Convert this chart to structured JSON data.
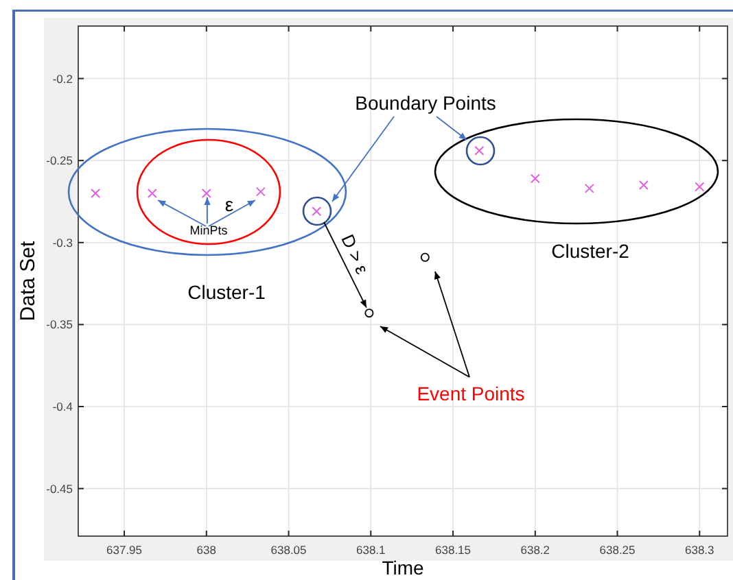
{
  "chart_data": {
    "type": "scatter",
    "xlabel": "Time",
    "ylabel": "Data Set",
    "xlim": [
      637.922,
      638.317
    ],
    "ylim": [
      -0.479,
      -0.168
    ],
    "xticks": [
      637.95,
      638,
      638.05,
      638.1,
      638.15,
      638.2,
      638.25,
      638.3
    ],
    "yticks": [
      -0.2,
      -0.25,
      -0.3,
      -0.35,
      -0.4,
      -0.45
    ],
    "grid": true,
    "series": [
      {
        "color": "#e060e0",
        "marker": "cross",
        "x": [
          637.9325,
          637.967,
          638.0,
          638.033,
          638.067,
          638.166,
          638.2,
          638.233,
          638.266,
          638.3
        ],
        "values": [
          -0.27,
          -0.27,
          -0.27,
          -0.269,
          -0.281,
          -0.244,
          -0.261,
          -0.267,
          -0.265,
          -0.266
        ]
      },
      {
        "color": "#000000",
        "marker": "circle",
        "x": [
          638.099,
          638.133
        ],
        "values": [
          -0.343,
          -0.309
        ]
      }
    ],
    "annotations": [
      "Boundary Points",
      "Cluster-1",
      "Cluster-2",
      "Event Points",
      "ε",
      "MinPts",
      {
        "text": "D > ε",
        "x": 638.099,
        "y": -0.343
      }
    ]
  }
}
